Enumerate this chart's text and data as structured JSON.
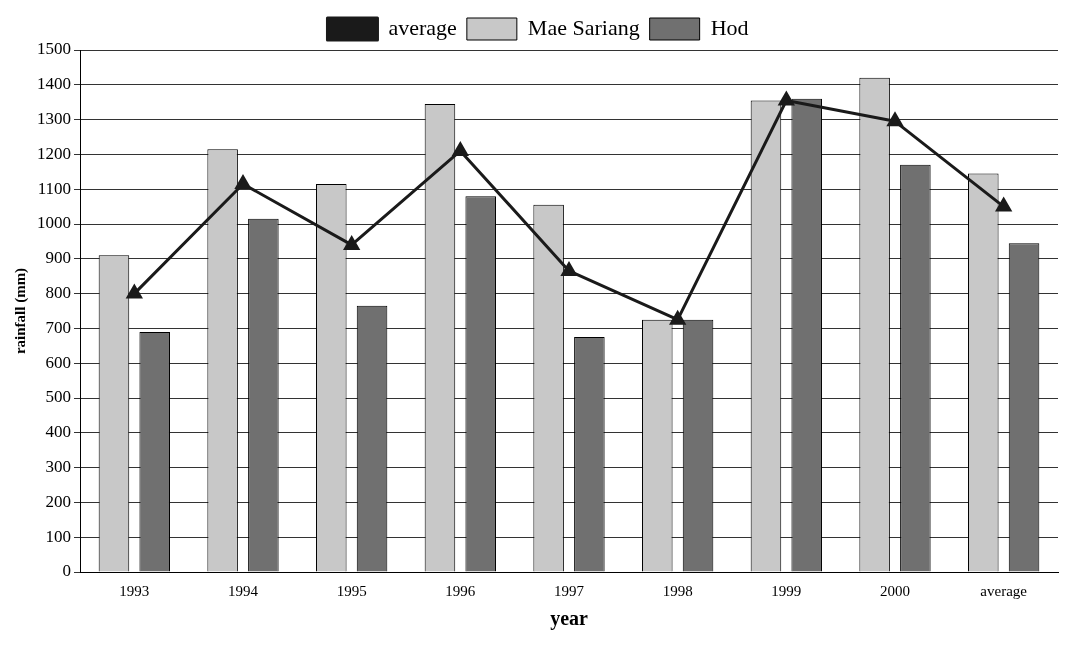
{
  "chart_data": {
    "type": "bar",
    "xlabel": "year",
    "ylabel": "rainfall (mm)",
    "categories": [
      "1993",
      "1994",
      "1995",
      "1996",
      "1997",
      "1998",
      "1999",
      "2000",
      "average"
    ],
    "series": [
      {
        "name": "Mae Sariang",
        "color": "#c8c8c8",
        "values": [
          910,
          1215,
          1115,
          1345,
          1055,
          725,
          1355,
          1420,
          1145
        ]
      },
      {
        "name": "Hod",
        "color": "#707070",
        "values": [
          690,
          1015,
          765,
          1080,
          675,
          725,
          1360,
          1170,
          945
        ]
      },
      {
        "name": "average",
        "type": "line",
        "color": "#1a1a1a",
        "marker": "triangle",
        "values": [
          800,
          1115,
          940,
          1210,
          865,
          725,
          1355,
          1295,
          1050
        ]
      }
    ],
    "ylim": [
      0,
      1500
    ],
    "yticks": [
      0,
      100,
      200,
      300,
      400,
      500,
      600,
      700,
      800,
      900,
      1000,
      1100,
      1200,
      1300,
      1400,
      1500
    ],
    "grid": "y",
    "legend": "top"
  }
}
